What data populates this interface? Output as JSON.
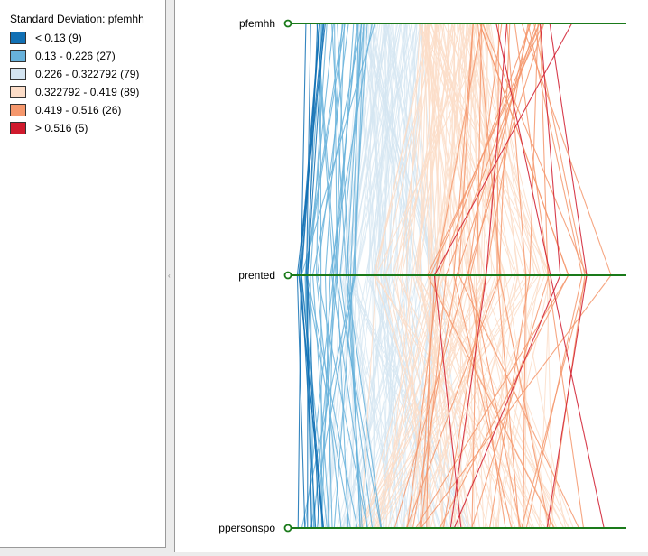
{
  "legend": {
    "title": "Standard Deviation: pfemhh",
    "items": [
      {
        "label": "< 0.13 (9)",
        "color": "#1170b4"
      },
      {
        "label": "0.13 - 0.226 (27)",
        "color": "#67b1db"
      },
      {
        "label": "0.226 - 0.322792 (79)",
        "color": "#d4e5f2"
      },
      {
        "label": "0.322792 - 0.419 (89)",
        "color": "#fcddc8"
      },
      {
        "label": "0.419 - 0.516 (26)",
        "color": "#f5976c"
      },
      {
        "label": "> 0.516 (5)",
        "color": "#d01a2d"
      }
    ]
  },
  "chart_data": {
    "type": "parallel_coordinates",
    "color_variable": "pfemhh",
    "axes": [
      "pfemhh",
      "prented",
      "ppersonspo"
    ],
    "axis_color": "#1a7a1a",
    "classes": [
      {
        "label": "< 0.13 (9)",
        "count": 9,
        "color": "#1170b4"
      },
      {
        "label": "0.13 - 0.226 (27)",
        "count": 27,
        "color": "#67b1db"
      },
      {
        "label": "0.226 - 0.322792 (79)",
        "count": 79,
        "color": "#d4e5f2"
      },
      {
        "label": "0.322792 - 0.419 (89)",
        "count": 89,
        "color": "#fcddc8"
      },
      {
        "label": "0.419 - 0.516 (26)",
        "count": 26,
        "color": "#f5976c"
      },
      {
        "label": "> 0.516 (5)",
        "count": 5,
        "color": "#d01a2d"
      }
    ]
  }
}
